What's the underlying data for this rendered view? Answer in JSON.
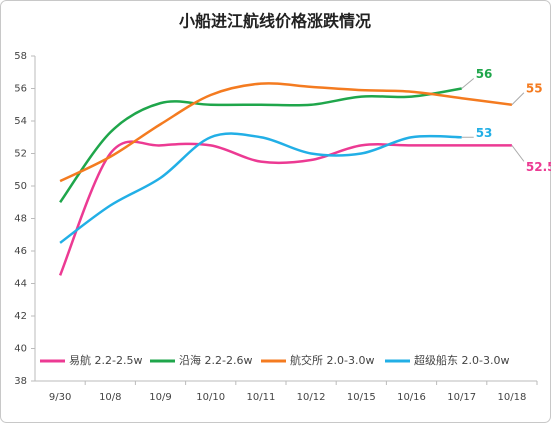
{
  "chart_data": {
    "type": "line",
    "title": "小船进江航线价格涨跌情况",
    "categories": [
      "9/30",
      "10/8",
      "10/9",
      "10/10",
      "10/11",
      "10/12",
      "10/15",
      "10/16",
      "10/17",
      "10/18"
    ],
    "series": [
      {
        "name": "易航 2.2-2.5w",
        "color": "#ec3a93",
        "values": [
          44.5,
          52,
          52.5,
          52.5,
          51.5,
          51.6,
          52.5,
          52.5,
          52.5,
          52.5
        ]
      },
      {
        "name": "沿海 2.2-2.6w",
        "color": "#1fa64b",
        "values": [
          49,
          53.3,
          55.1,
          55,
          55,
          55,
          55.5,
          55.5,
          56,
          null
        ]
      },
      {
        "name": "航交所 2.0-3.0w",
        "color": "#f47b20",
        "values": [
          50.3,
          51.8,
          53.8,
          55.6,
          56.3,
          56.1,
          55.9,
          55.8,
          55.4,
          55
        ]
      },
      {
        "name": "超级船东 2.0-3.0w",
        "color": "#22afe6",
        "values": [
          46.5,
          48.8,
          50.5,
          53,
          53,
          52,
          52,
          53,
          53,
          null
        ]
      }
    ],
    "ylim": [
      38,
      58
    ],
    "yticks": [
      38,
      40,
      42,
      44,
      46,
      48,
      50,
      52,
      54,
      56,
      58
    ],
    "grid": false,
    "legend": "bottom-left"
  }
}
